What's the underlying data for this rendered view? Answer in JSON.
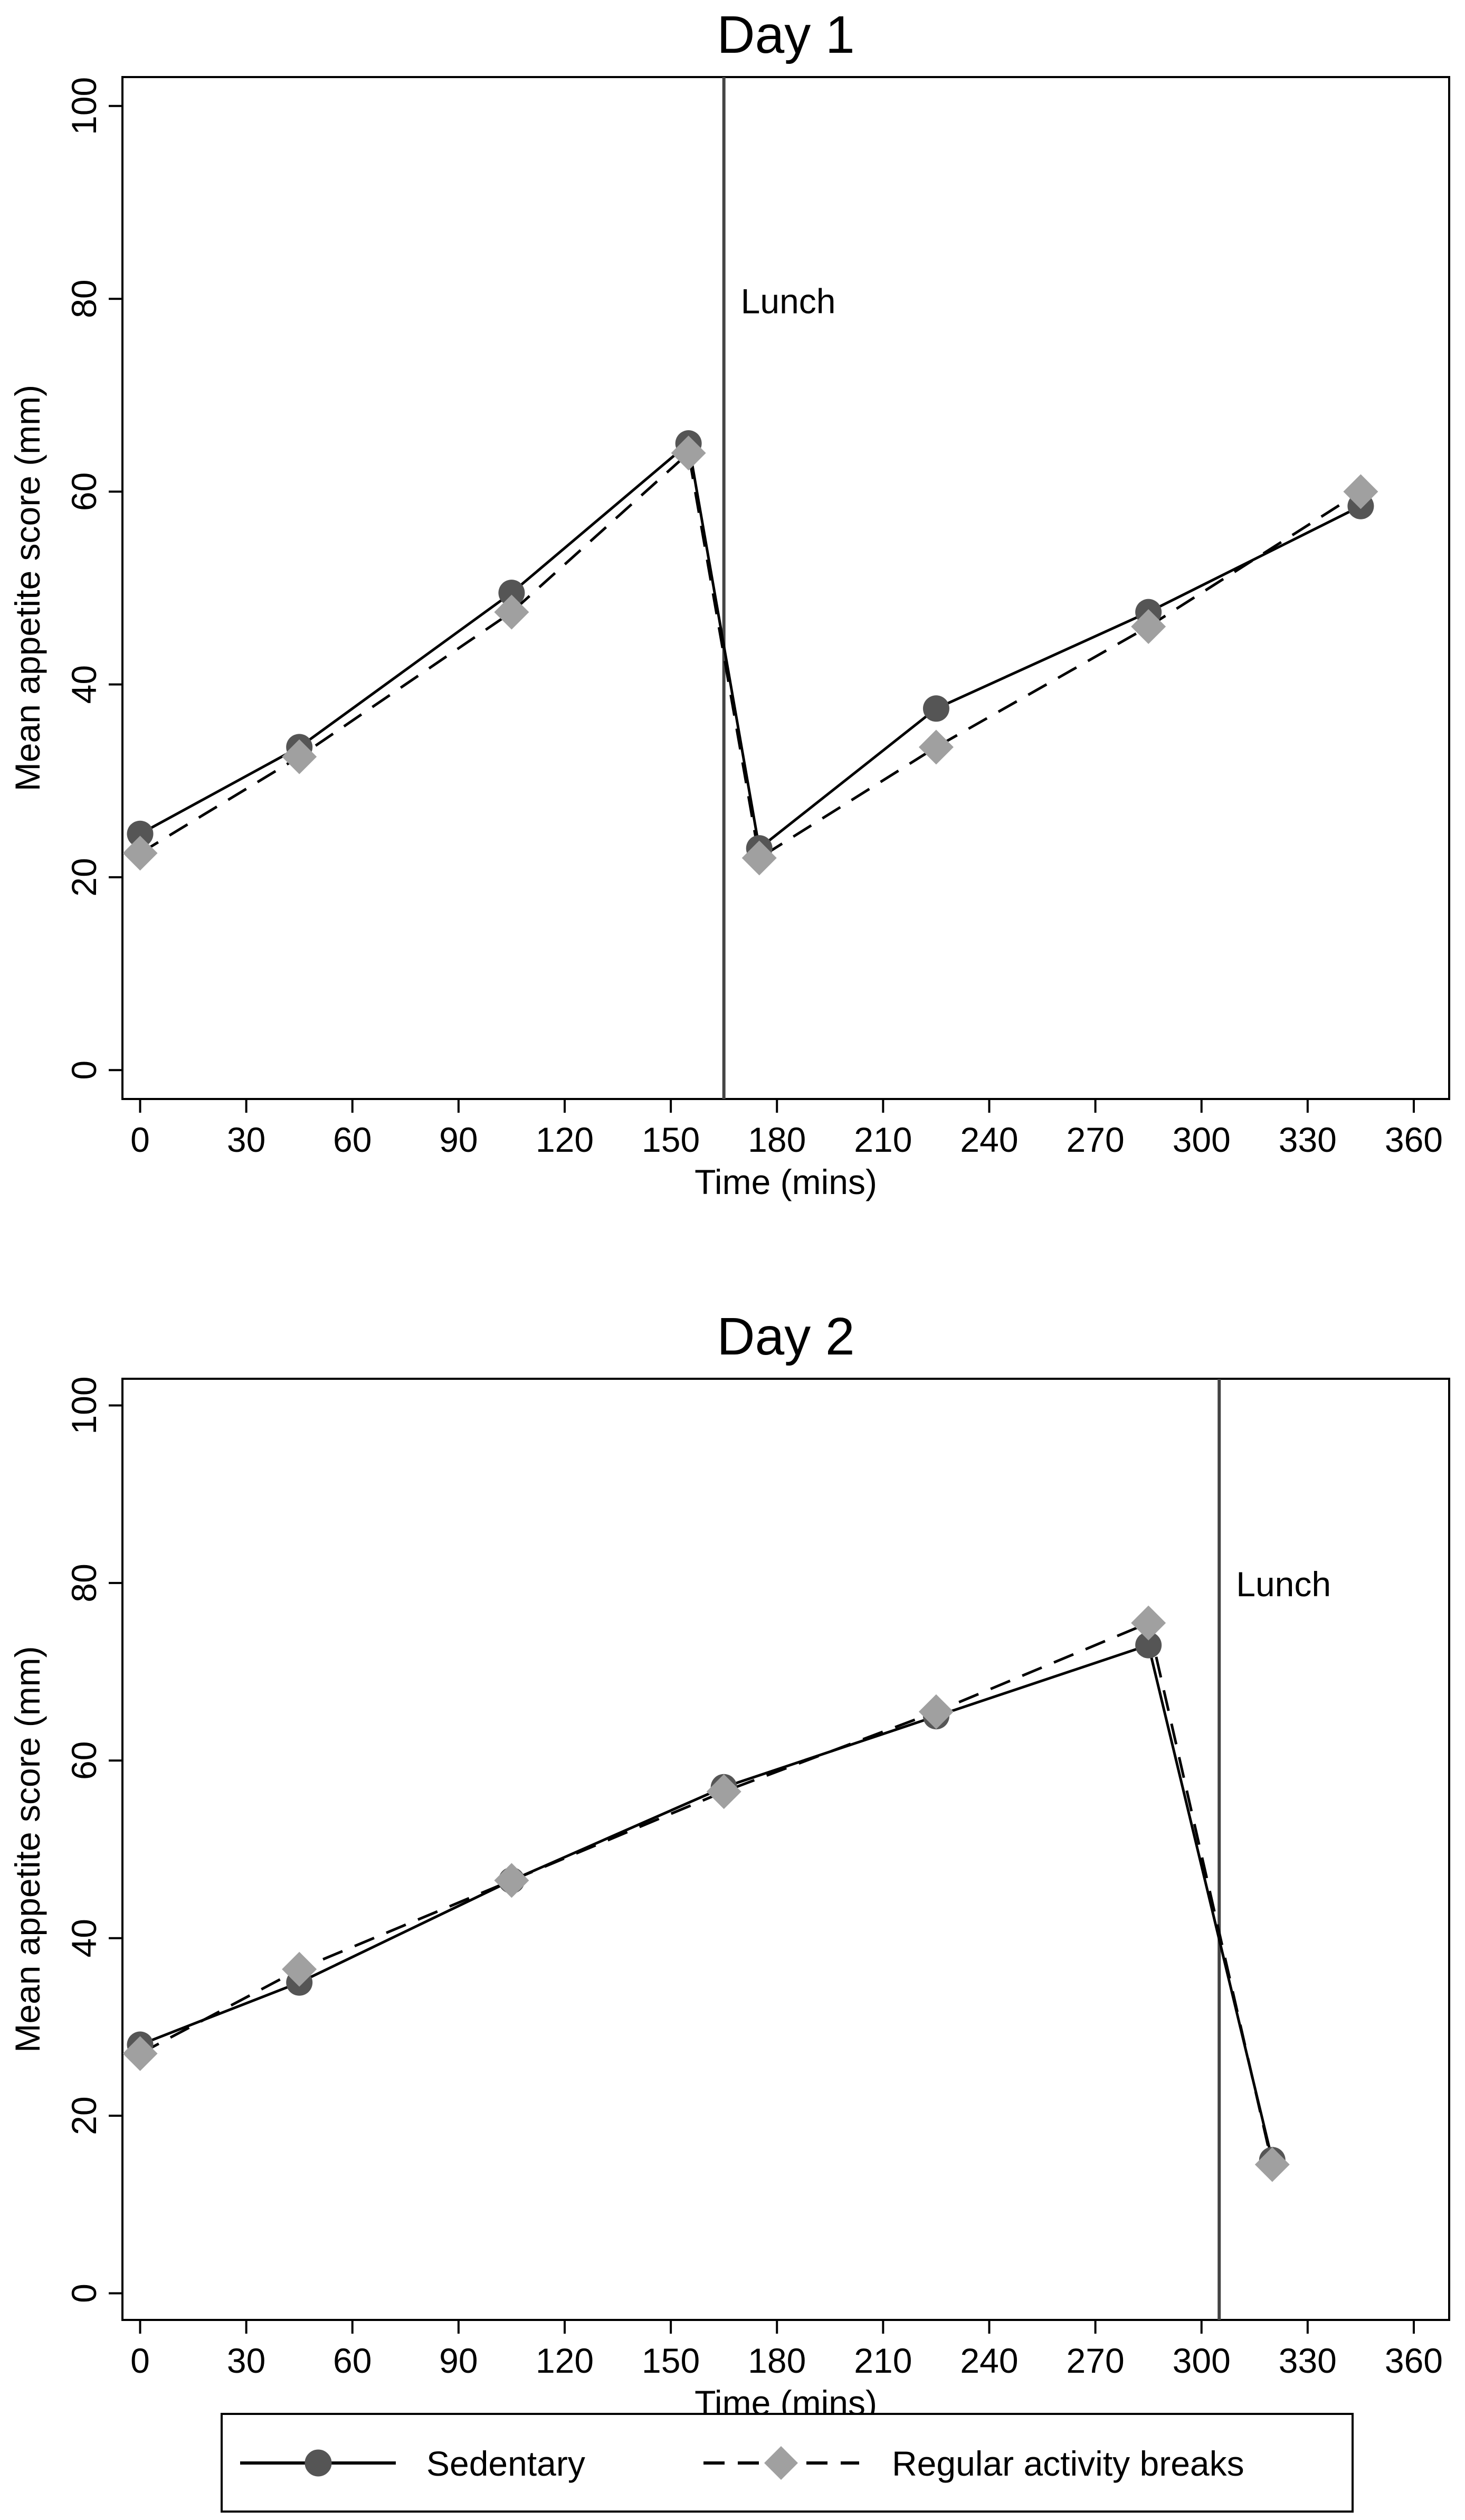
{
  "chart_data": [
    {
      "type": "line",
      "title": "Day 1",
      "xlabel": "Time (mins)",
      "ylabel": "Mean appetite score (mm)",
      "xlim": [
        -5,
        370
      ],
      "ylim": [
        -3,
        103
      ],
      "xticks": [
        0,
        30,
        60,
        90,
        120,
        150,
        180,
        210,
        240,
        270,
        300,
        330,
        360
      ],
      "yticks": [
        0,
        20,
        40,
        60,
        80,
        100
      ],
      "annotation": {
        "text": "Lunch",
        "x": 165
      },
      "series": [
        {
          "name": "Sedentary",
          "x": [
            0,
            45,
            105,
            155,
            175,
            225,
            285,
            345
          ],
          "values": [
            24.5,
            33.5,
            49.5,
            65,
            23,
            37.5,
            47.5,
            58.5
          ]
        },
        {
          "name": "Regular activity breaks",
          "x": [
            0,
            45,
            105,
            155,
            175,
            225,
            285,
            345
          ],
          "values": [
            22.5,
            32.5,
            47.5,
            64,
            22,
            33.5,
            46,
            60
          ]
        }
      ]
    },
    {
      "type": "line",
      "title": "Day 2",
      "xlabel": "Time (mins)",
      "ylabel": "Mean appetite score (mm)",
      "xlim": [
        -5,
        370
      ],
      "ylim": [
        -3,
        103
      ],
      "xticks": [
        0,
        30,
        60,
        90,
        120,
        150,
        180,
        210,
        240,
        270,
        300,
        330,
        360
      ],
      "yticks": [
        0,
        20,
        40,
        60,
        80,
        100
      ],
      "annotation": {
        "text": "Lunch",
        "x": 305
      },
      "series": [
        {
          "name": "Sedentary",
          "x": [
            0,
            45,
            105,
            165,
            225,
            285,
            320
          ],
          "values": [
            28,
            35,
            46.5,
            57,
            65,
            73,
            15
          ]
        },
        {
          "name": "Regular activity breaks",
          "x": [
            0,
            45,
            105,
            165,
            225,
            285,
            320
          ],
          "values": [
            27,
            36.5,
            46.5,
            56.5,
            65.5,
            75.5,
            14.5
          ]
        }
      ]
    }
  ],
  "legend": {
    "items": [
      {
        "label": "Sedentary",
        "color": "#555555",
        "marker": "circle",
        "line": "solid"
      },
      {
        "label": "Regular activity breaks",
        "color": "#a0a0a0",
        "marker": "diamond",
        "line": "dashed"
      }
    ]
  }
}
